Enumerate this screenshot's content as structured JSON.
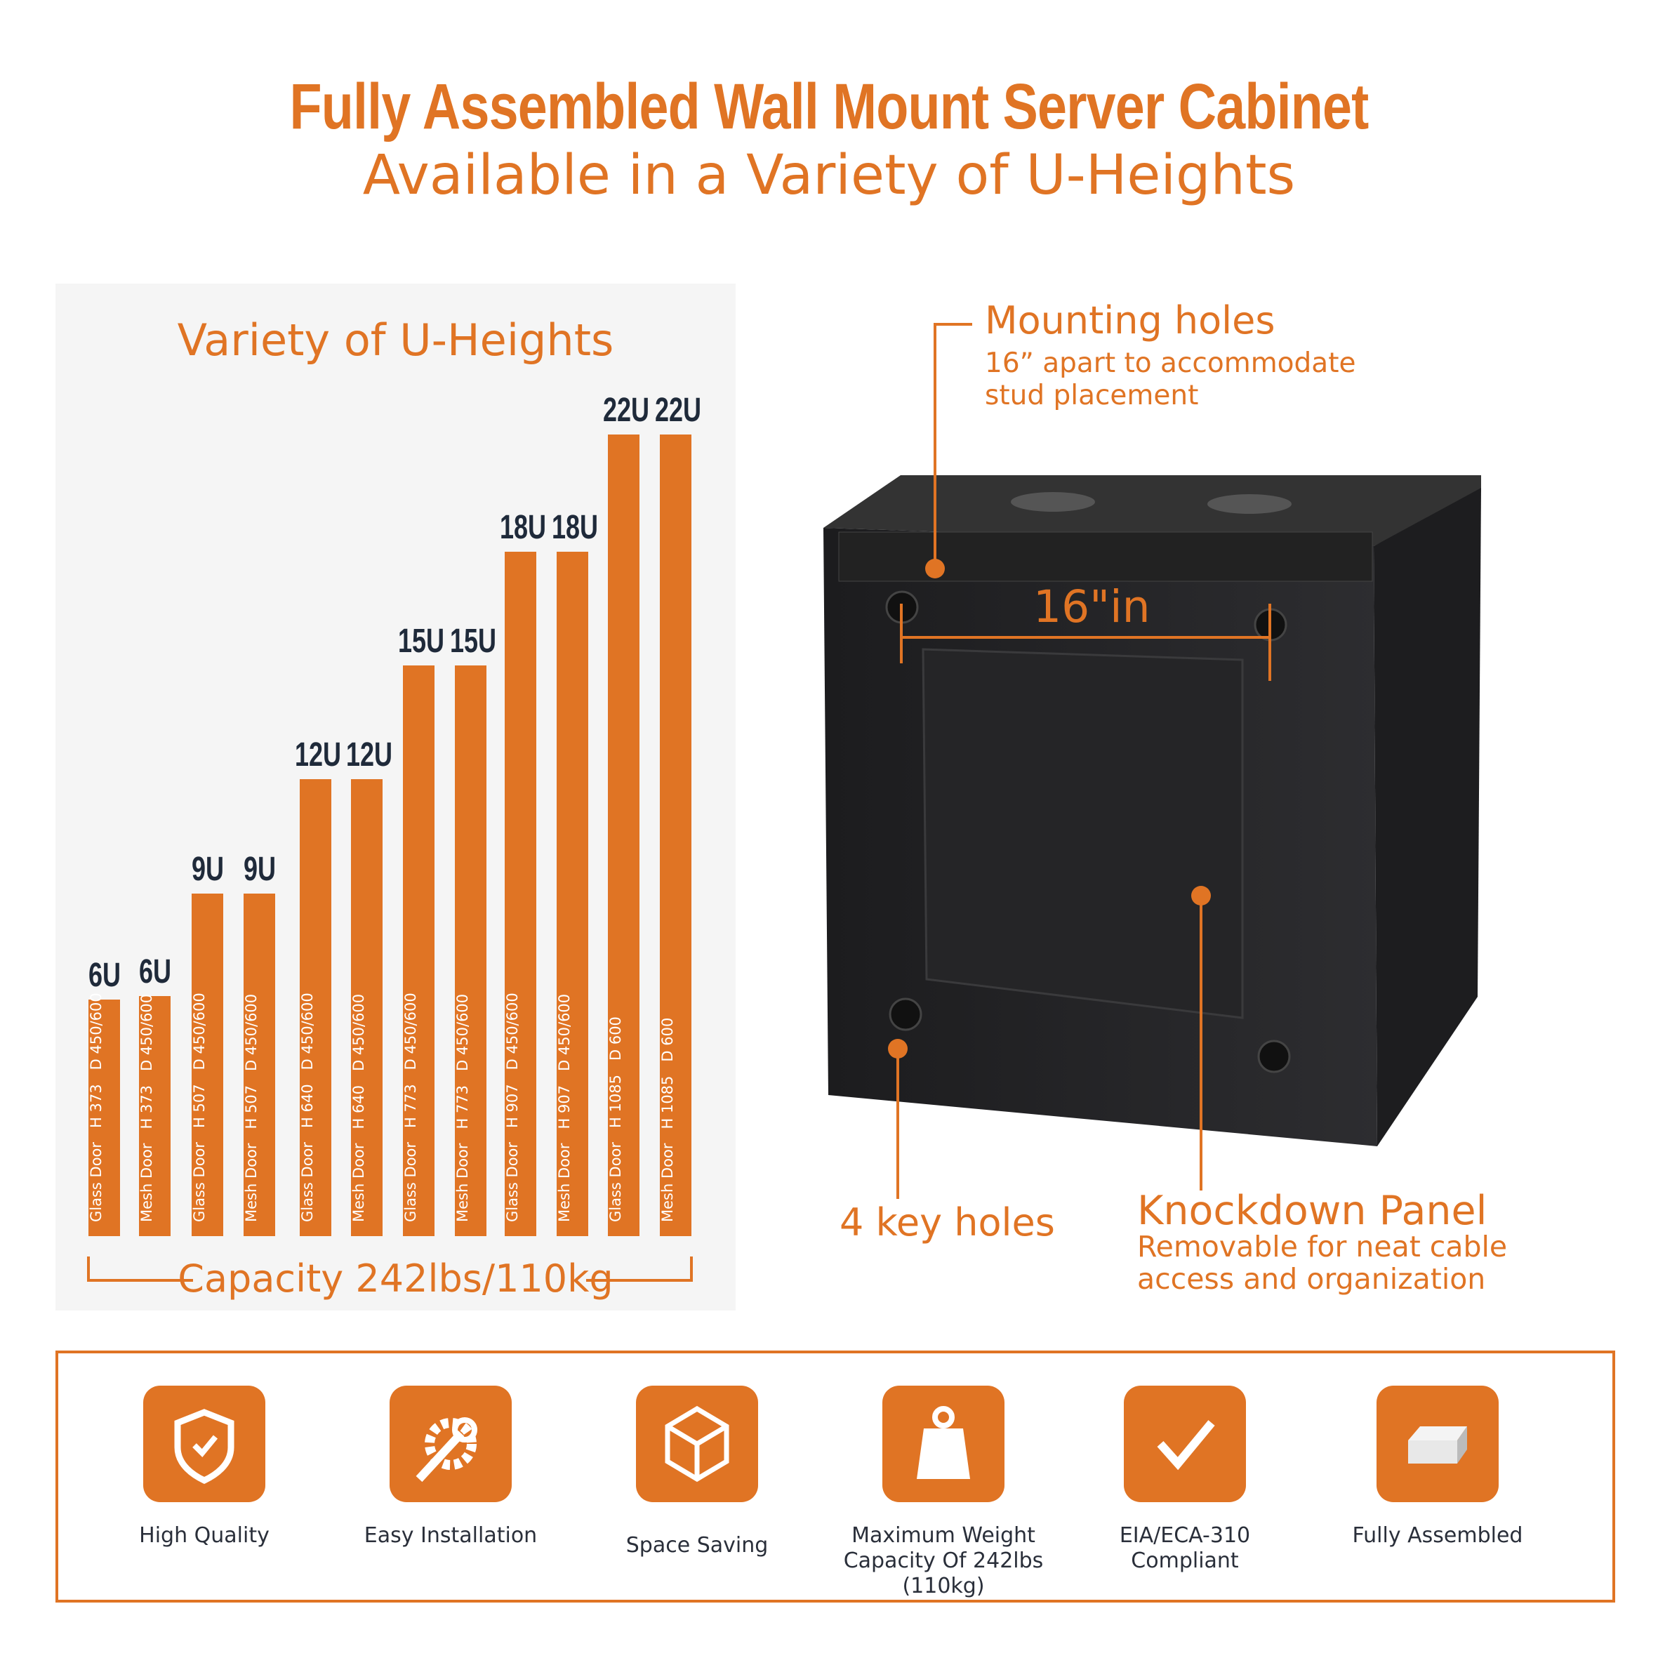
{
  "header": {
    "title": "Fully Assembled Wall Mount Server Cabinet",
    "subtitle": "Available in a Variety of U-Heights"
  },
  "colors": {
    "accent": "#e07424",
    "label": "#1f2a3a"
  },
  "chart_data": {
    "type": "bar",
    "title": "Variety of U-Heights",
    "categories": [
      "6U",
      "6U",
      "9U",
      "9U",
      "12U",
      "12U",
      "15U",
      "15U",
      "18U",
      "18U",
      "22U",
      "22U"
    ],
    "values": [
      6,
      6,
      9,
      9,
      12,
      12,
      15,
      15,
      18,
      18,
      22,
      22
    ],
    "bar_text": [
      "Glass Door   H 373   D 450/600",
      "Mesh Door   H 373   D 450/600",
      "Glass Door   H 507   D 450/600",
      "Mesh Door   H 507   D 450/600",
      "Glass Door   H 640   D 450/600",
      "Mesh Door   H 640   D 450/600",
      "Glass Door   H 773   D 450/600",
      "Mesh Door   H 773   D 450/600",
      "Glass Door   H 907   D 450/600",
      "Mesh Door   H 907   D 450/600",
      "Glass Door   H 1085   D 600",
      "Mesh Door   H 1085   D 600"
    ],
    "footer": "Capacity 242lbs/110kg"
  },
  "annotations": {
    "mounting_title": "Mounting holes",
    "mounting_sub1": "16” apart to accommodate",
    "mounting_sub2": "stud placement",
    "measure": "16\"in",
    "keyholes": "4 key holes",
    "knock_title": "Knockdown Panel",
    "knock_sub1": "Removable for neat cable",
    "knock_sub2": "access and organization"
  },
  "features": [
    {
      "icon": "shield-check-icon",
      "label": "High Quality"
    },
    {
      "icon": "wrench-gear-icon",
      "label": "Easy Installation"
    },
    {
      "icon": "cube-icon",
      "label": "Space Saving"
    },
    {
      "icon": "weight-icon",
      "label": "Maximum Weight\nCapacity Of 242lbs (110kg)"
    },
    {
      "icon": "checkmark-icon",
      "label": "EIA/ECA-310\nCompliant"
    },
    {
      "icon": "box-icon",
      "label": "Fully Assembled"
    }
  ]
}
